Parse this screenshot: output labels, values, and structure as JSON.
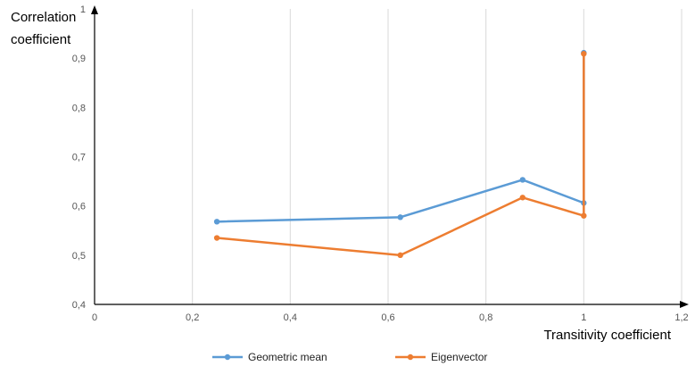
{
  "chart_data": {
    "type": "line",
    "ylabel_line1": "Correlation",
    "ylabel_line2": "coefficient",
    "xlabel": "Transitivity coefficient",
    "xlim": [
      0,
      1.2
    ],
    "ylim": [
      0.4,
      1
    ],
    "xticks": [
      "0",
      "0,2",
      "0,4",
      "0,6",
      "0,8",
      "1",
      "1,2"
    ],
    "yticks": [
      "0,4",
      "0,5",
      "0,6",
      "0,7",
      "0,8",
      "0,9",
      "1"
    ],
    "grid": "vertical",
    "legend_position": "bottom",
    "series": [
      {
        "name": "Geometric mean",
        "color": "#5B9BD5",
        "points": [
          {
            "x": 0.25,
            "y": 0.568
          },
          {
            "x": 0.625,
            "y": 0.577
          },
          {
            "x": 0.875,
            "y": 0.653
          },
          {
            "x": 1.0,
            "y": 0.606
          },
          {
            "x": 1.0,
            "y": 0.911
          }
        ]
      },
      {
        "name": "Eigenvector",
        "color": "#ED7D31",
        "points": [
          {
            "x": 0.25,
            "y": 0.535
          },
          {
            "x": 0.625,
            "y": 0.5
          },
          {
            "x": 0.875,
            "y": 0.617
          },
          {
            "x": 1.0,
            "y": 0.58
          },
          {
            "x": 1.0,
            "y": 0.909
          }
        ]
      }
    ]
  }
}
